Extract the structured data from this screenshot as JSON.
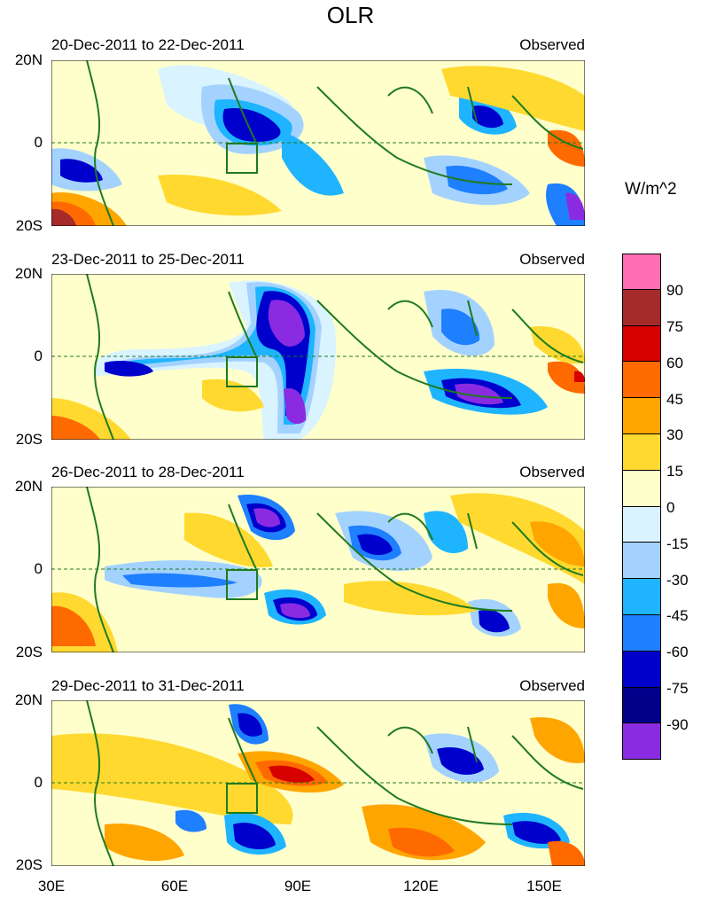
{
  "title": "OLR",
  "panels": [
    {
      "date_range": "20-Dec-2011 to 22-Dec-2011",
      "label": "Observed"
    },
    {
      "date_range": "23-Dec-2011 to 25-Dec-2011",
      "label": "Observed"
    },
    {
      "date_range": "26-Dec-2011 to 28-Dec-2011",
      "label": "Observed"
    },
    {
      "date_range": "29-Dec-2011 to 31-Dec-2011",
      "label": "Observed"
    }
  ],
  "lat_labels": [
    "20N",
    "0",
    "20S"
  ],
  "lon_labels": [
    "30E",
    "60E",
    "90E",
    "120E",
    "150E"
  ],
  "colorbar": {
    "units": "W/m^2",
    "levels": [
      "90",
      "75",
      "60",
      "45",
      "30",
      "15",
      "0",
      "-15",
      "-30",
      "-45",
      "-60",
      "-75",
      "-90"
    ],
    "colors": [
      "#ff6eb4",
      "#a52a2a",
      "#d60000",
      "#ff6a00",
      "#ffa500",
      "#ffd92f",
      "#ffffcc",
      "#d9f3ff",
      "#a3d2ff",
      "#1fb4ff",
      "#1e7fff",
      "#0000cd",
      "#00008b",
      "#8a2be2"
    ]
  },
  "colors": {
    "coast": "#1f7a1f",
    "equator": "#1f7a1f",
    "axis": "#000000"
  }
}
